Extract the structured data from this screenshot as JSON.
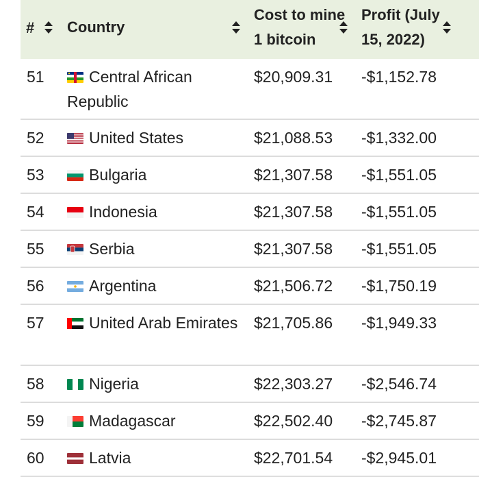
{
  "table": {
    "headers": {
      "num": "#",
      "country": "Country",
      "cost": "Cost to mine 1 bitcoin",
      "profit": "Profit (July 15, 2022)"
    },
    "rows": [
      {
        "num": "51",
        "country": "Central African Republic",
        "flag": "central-african-republic-flag-icon",
        "cost": "$20,909.31",
        "profit": "-$1,152.78"
      },
      {
        "num": "52",
        "country": "United States",
        "flag": "united-states-flag-icon",
        "cost": "$21,088.53",
        "profit": "-$1,332.00"
      },
      {
        "num": "53",
        "country": "Bulgaria",
        "flag": "bulgaria-flag-icon",
        "cost": "$21,307.58",
        "profit": "-$1,551.05"
      },
      {
        "num": "54",
        "country": "Indonesia",
        "flag": "indonesia-flag-icon",
        "cost": "$21,307.58",
        "profit": "-$1,551.05"
      },
      {
        "num": "55",
        "country": "Serbia",
        "flag": "serbia-flag-icon",
        "cost": "$21,307.58",
        "profit": "-$1,551.05"
      },
      {
        "num": "56",
        "country": "Argentina",
        "flag": "argentina-flag-icon",
        "cost": "$21,506.72",
        "profit": "-$1,750.19"
      },
      {
        "num": "57",
        "country": "United Arab Emirates",
        "flag": "uae-flag-icon",
        "cost": "$21,705.86",
        "profit": "-$1,949.33"
      },
      {
        "num": "58",
        "country": "Nigeria",
        "flag": "nigeria-flag-icon",
        "cost": "$22,303.27",
        "profit": "-$2,546.74"
      },
      {
        "num": "59",
        "country": "Madagascar",
        "flag": "madagascar-flag-icon",
        "cost": "$22,502.40",
        "profit": "-$2,745.87"
      },
      {
        "num": "60",
        "country": "Latvia",
        "flag": "latvia-flag-icon",
        "cost": "$22,701.54",
        "profit": "-$2,945.01"
      }
    ]
  },
  "colors": {
    "header_bg": "#e9f0e0",
    "row_border": "#dcdcdc",
    "text": "#222222"
  }
}
